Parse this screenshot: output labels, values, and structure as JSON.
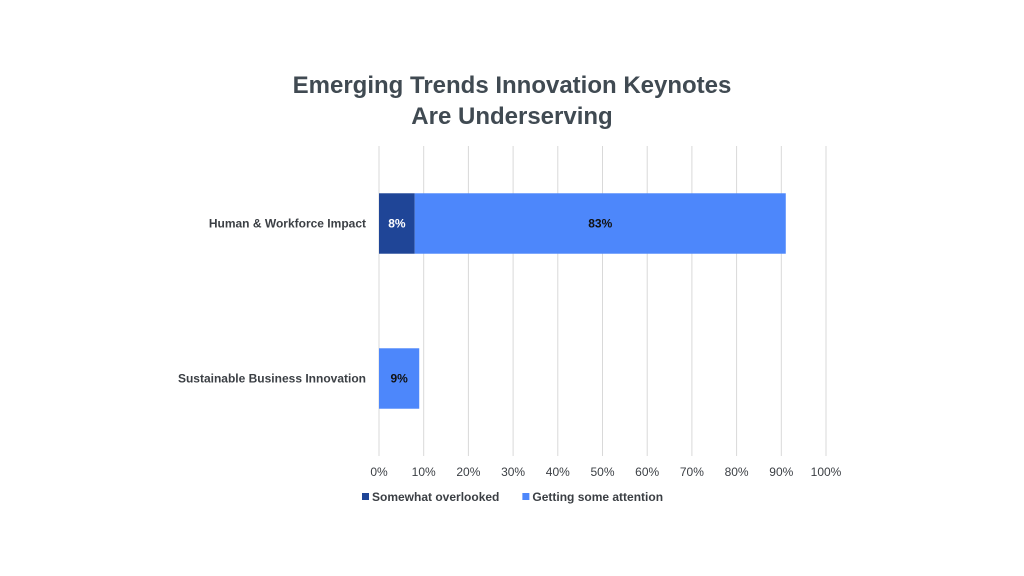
{
  "chart_data": {
    "type": "bar",
    "orientation": "horizontal",
    "stacked": true,
    "title_lines": [
      "Emerging Trends Innovation Keynotes",
      "Are Underserving"
    ],
    "categories": [
      "Human & Workforce Impact",
      "Sustainable Business Innovation"
    ],
    "series": [
      {
        "name": "Somewhat overlooked",
        "values": [
          8,
          0
        ],
        "labels": [
          "8%",
          ""
        ],
        "color": "#1f4597",
        "label_color": "#ffffff"
      },
      {
        "name": "Getting some attention",
        "values": [
          83,
          9
        ],
        "labels": [
          "83%",
          "9%"
        ],
        "color": "#4d87fb",
        "label_color": "#111111"
      }
    ],
    "xlim": [
      0,
      100
    ],
    "x_ticks": [
      0,
      10,
      20,
      30,
      40,
      50,
      60,
      70,
      80,
      90,
      100
    ],
    "x_tick_labels": [
      "0%",
      "10%",
      "20%",
      "30%",
      "40%",
      "50%",
      "60%",
      "70%",
      "80%",
      "90%",
      "100%"
    ],
    "grid": true,
    "grid_color": "#d9d9d9",
    "legend_position": "bottom"
  }
}
